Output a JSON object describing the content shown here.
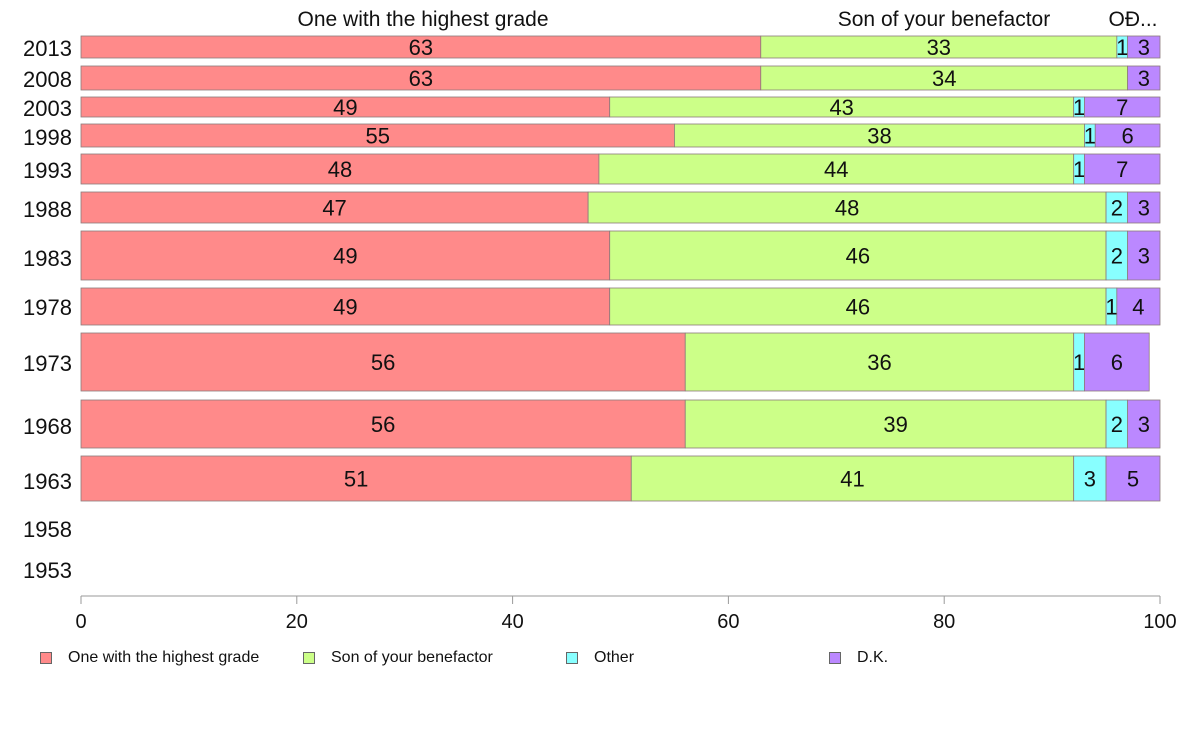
{
  "chart_data": {
    "type": "bar",
    "orientation": "horizontal",
    "stacked": true,
    "categories": [
      "2013",
      "2008",
      "2003",
      "1998",
      "1993",
      "1988",
      "1983",
      "1978",
      "1973",
      "1968",
      "1963",
      "1958",
      "1953"
    ],
    "series": [
      {
        "name": "One with the highest grade",
        "color": "#ff8a8a",
        "values": [
          63,
          63,
          49,
          55,
          48,
          47,
          49,
          49,
          56,
          56,
          51,
          null,
          null
        ]
      },
      {
        "name": "Son of your benefactor",
        "color": "#ccff88",
        "values": [
          33,
          34,
          43,
          38,
          44,
          48,
          46,
          46,
          36,
          39,
          41,
          null,
          null
        ]
      },
      {
        "name": "Other",
        "color": "#88ffff",
        "values": [
          1,
          0,
          1,
          1,
          1,
          2,
          2,
          1,
          1,
          2,
          3,
          null,
          null
        ]
      },
      {
        "name": "D.K.",
        "color": "#bb88ff",
        "values": [
          3,
          3,
          7,
          6,
          7,
          3,
          3,
          4,
          6,
          3,
          5,
          null,
          null
        ]
      }
    ],
    "top_labels": [
      "One with the highest grade",
      "Son of your benefactor",
      "OĐ..."
    ],
    "xlim": [
      0,
      100
    ],
    "xticks": [
      "0",
      "20",
      "40",
      "60",
      "80",
      "100"
    ],
    "grid": false,
    "legend_position": "bottom"
  }
}
